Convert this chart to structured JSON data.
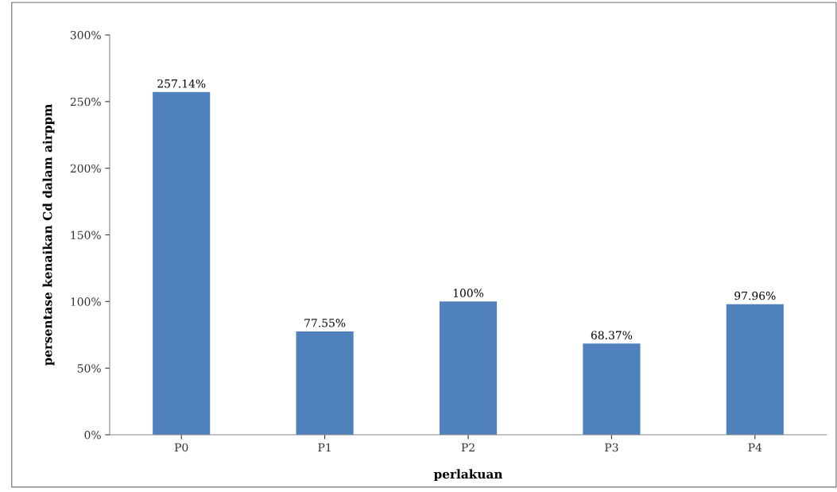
{
  "chart_data": {
    "type": "bar",
    "xlabel": "perlakuan",
    "ylabel": "persentase kenaikan Cd dalam airppm",
    "categories": [
      "P0",
      "P1",
      "P2",
      "P3",
      "P4"
    ],
    "values": [
      257.14,
      77.55,
      100,
      68.37,
      97.96
    ],
    "value_labels": [
      "257.14%",
      "77.55%",
      "100%",
      "68.37%",
      "97.96%"
    ],
    "color": "#4f81bd",
    "ylim": [
      0,
      300
    ],
    "yticks": [
      {
        "value": 0,
        "label": "0%"
      },
      {
        "value": 50,
        "label": "50%"
      },
      {
        "value": 100,
        "label": "100%"
      },
      {
        "value": 150,
        "label": "150%"
      },
      {
        "value": 200,
        "label": "200%"
      },
      {
        "value": 250,
        "label": "250%"
      },
      {
        "value": 300,
        "label": "300%"
      }
    ],
    "grid": false,
    "legend": false
  }
}
